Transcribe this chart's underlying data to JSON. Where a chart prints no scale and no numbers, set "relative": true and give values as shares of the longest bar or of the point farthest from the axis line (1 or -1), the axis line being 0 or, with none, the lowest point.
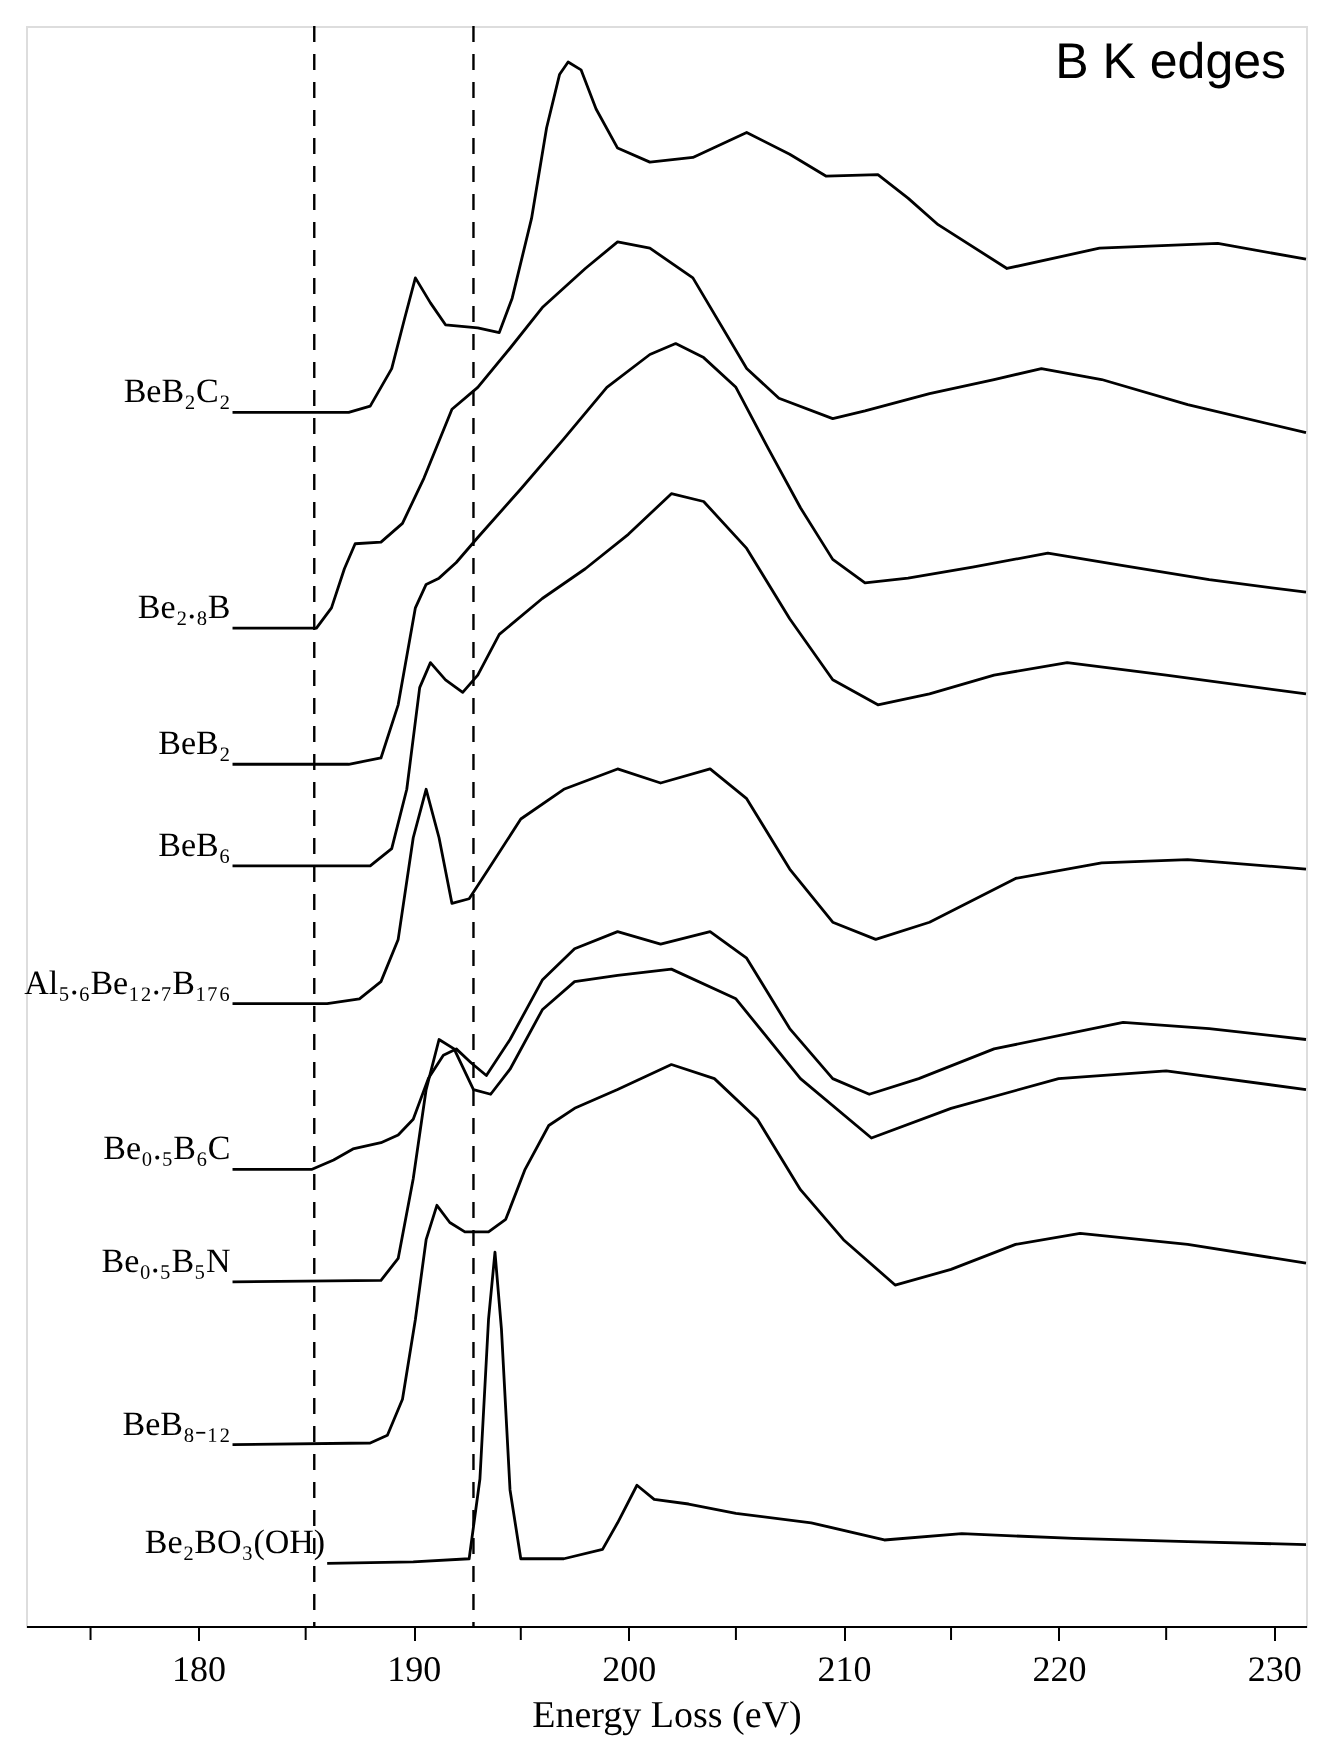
{
  "chart_data": {
    "type": "line",
    "title": "B K edges",
    "xlabel": "Energy Loss (eV)",
    "relative": true,
    "xlim": [
      172,
      231.5
    ],
    "xticks": [
      {
        "value": 175,
        "label": null
      },
      180,
      {
        "value": 185,
        "label": null
      },
      190,
      {
        "value": 195,
        "label": null
      },
      200,
      {
        "value": 205,
        "label": null
      },
      210,
      {
        "value": 215,
        "label": null
      },
      220,
      {
        "value": 225,
        "label": null
      },
      230
    ],
    "grid": false,
    "legend": false,
    "marker": "none",
    "line_style": "solid",
    "tick_labels": "x",
    "ref_lines": [
      {
        "axis": "x",
        "value": 185.4,
        "label": null,
        "color": "#000000",
        "line_style": "dashed"
      },
      {
        "axis": "x",
        "value": 192.8,
        "label": null,
        "color": "#000000",
        "line_style": "dashed"
      }
    ],
    "series": [
      {
        "name": "BeB₂C₂",
        "color": "#000000",
        "x": [
          181.6,
          187,
          188,
          189,
          189.6,
          190.1,
          190.8,
          191.5,
          193,
          194,
          194.6,
          195.5,
          196.2,
          196.8,
          197.2,
          197.8,
          198.5,
          199.5,
          201,
          203,
          205.5,
          207.5,
          209.2,
          211.6,
          213,
          214.4,
          217.6,
          221.9,
          227.4,
          231.5
        ],
        "values": [
          0.776,
          0.776,
          0.78,
          0.804,
          0.836,
          0.862,
          0.846,
          0.832,
          0.83,
          0.827,
          0.849,
          0.9,
          0.958,
          0.992,
          1.0,
          0.995,
          0.97,
          0.945,
          0.936,
          0.939,
          0.955,
          0.941,
          0.927,
          0.928,
          0.913,
          0.896,
          0.868,
          0.881,
          0.884,
          0.874
        ]
      },
      {
        "name": "Be₂.₈B",
        "color": "#000000",
        "x": [
          181.6,
          185.5,
          186.2,
          186.8,
          187.3,
          188.5,
          189.5,
          190.5,
          191.8,
          193,
          194.5,
          196,
          198,
          199.5,
          201,
          203,
          205.5,
          207,
          209.5,
          211,
          214,
          217,
          219.2,
          222,
          226,
          231.5
        ],
        "values": [
          0.638,
          0.638,
          0.651,
          0.676,
          0.692,
          0.693,
          0.705,
          0.734,
          0.778,
          0.792,
          0.817,
          0.843,
          0.868,
          0.885,
          0.881,
          0.862,
          0.804,
          0.785,
          0.772,
          0.777,
          0.788,
          0.797,
          0.804,
          0.797,
          0.781,
          0.763
        ]
      },
      {
        "name": "BeB₂",
        "color": "#000000",
        "x": [
          181.6,
          187,
          188.5,
          189.3,
          190.1,
          190.6,
          191.2,
          192,
          193,
          195,
          197,
          199,
          201,
          202.2,
          203.5,
          205,
          206.5,
          208,
          209.5,
          211,
          213,
          216,
          219.5,
          223,
          227,
          231.5
        ],
        "values": [
          0.551,
          0.551,
          0.555,
          0.589,
          0.651,
          0.666,
          0.67,
          0.68,
          0.696,
          0.727,
          0.759,
          0.792,
          0.813,
          0.82,
          0.811,
          0.792,
          0.753,
          0.715,
          0.682,
          0.667,
          0.67,
          0.677,
          0.686,
          0.678,
          0.669,
          0.661
        ]
      },
      {
        "name": "BeB₆",
        "color": "#000000",
        "x": [
          181.6,
          188,
          189,
          189.7,
          190.3,
          190.8,
          191.5,
          192.3,
          193,
          194,
          196,
          198,
          200,
          202,
          203.5,
          205.5,
          207.5,
          209.5,
          211.6,
          214,
          217,
          220.4,
          225,
          231.5
        ],
        "values": [
          0.486,
          0.486,
          0.497,
          0.535,
          0.6,
          0.616,
          0.605,
          0.597,
          0.608,
          0.634,
          0.657,
          0.676,
          0.698,
          0.724,
          0.719,
          0.689,
          0.644,
          0.605,
          0.589,
          0.596,
          0.608,
          0.616,
          0.608,
          0.596
        ]
      },
      {
        "name": "Al₅.₆Be₁₂.₇B₁₇₆",
        "color": "#000000",
        "x": [
          181.6,
          186,
          187.5,
          188.5,
          189.3,
          190,
          190.6,
          191.2,
          191.8,
          192.6,
          193.5,
          195,
          197,
          199.5,
          201.5,
          203.8,
          205.5,
          207.5,
          209.5,
          211.5,
          214,
          218,
          222,
          226,
          231.5
        ],
        "values": [
          0.398,
          0.398,
          0.401,
          0.412,
          0.439,
          0.504,
          0.535,
          0.504,
          0.462,
          0.465,
          0.484,
          0.516,
          0.535,
          0.548,
          0.539,
          0.548,
          0.529,
          0.484,
          0.45,
          0.439,
          0.45,
          0.478,
          0.488,
          0.49,
          0.484
        ]
      },
      {
        "name": "Be₀.₅B₆C",
        "color": "#000000",
        "x": [
          181.6,
          185.3,
          186.3,
          187.2,
          188.5,
          189.3,
          190,
          190.7,
          191.4,
          192,
          192.7,
          193.4,
          194.5,
          196,
          197.5,
          199.5,
          201.5,
          203.8,
          205.5,
          207.5,
          209.5,
          211.2,
          213.5,
          217,
          223,
          227,
          231.5
        ],
        "values": [
          0.292,
          0.292,
          0.298,
          0.305,
          0.309,
          0.314,
          0.324,
          0.35,
          0.365,
          0.369,
          0.36,
          0.352,
          0.375,
          0.413,
          0.433,
          0.444,
          0.436,
          0.444,
          0.427,
          0.382,
          0.35,
          0.34,
          0.35,
          0.369,
          0.386,
          0.382,
          0.375
        ]
      },
      {
        "name": "Be₀.₅B₅N",
        "color": "#000000",
        "x": [
          181.6,
          188.5,
          189.3,
          190,
          190.6,
          191.2,
          191.9,
          192.8,
          193.6,
          194.5,
          196,
          197.5,
          199.5,
          202,
          205,
          208,
          211.3,
          215,
          220,
          225,
          231.5
        ],
        "values": [
          0.22,
          0.221,
          0.235,
          0.286,
          0.343,
          0.375,
          0.369,
          0.343,
          0.34,
          0.356,
          0.394,
          0.412,
          0.416,
          0.42,
          0.401,
          0.35,
          0.312,
          0.331,
          0.35,
          0.355,
          0.343
        ]
      },
      {
        "name": "BeB₈₋₁₂",
        "color": "#000000",
        "x": [
          181.6,
          188,
          188.8,
          189.5,
          190.1,
          190.6,
          191.1,
          191.7,
          192.4,
          193.5,
          194.3,
          195.2,
          196.3,
          197.5,
          199.5,
          202,
          204,
          206,
          208,
          210,
          212.4,
          215,
          218,
          221,
          226,
          231.5
        ],
        "values": [
          0.116,
          0.117,
          0.122,
          0.145,
          0.196,
          0.247,
          0.269,
          0.258,
          0.252,
          0.252,
          0.26,
          0.292,
          0.32,
          0.331,
          0.343,
          0.359,
          0.35,
          0.324,
          0.279,
          0.247,
          0.218,
          0.228,
          0.244,
          0.251,
          0.244,
          0.232
        ]
      },
      {
        "name": "Be₂BO₃(OH)",
        "color": "#000000",
        "x": [
          186,
          190,
          192.6,
          193.1,
          193.5,
          193.8,
          194.1,
          194.5,
          195,
          197,
          198.8,
          199.5,
          200.4,
          201.2,
          202.8,
          205,
          208.5,
          211.9,
          215.5,
          220.7,
          226,
          231.5
        ],
        "values": [
          0.04,
          0.041,
          0.043,
          0.094,
          0.196,
          0.239,
          0.19,
          0.087,
          0.043,
          0.043,
          0.049,
          0.066,
          0.09,
          0.081,
          0.078,
          0.072,
          0.066,
          0.055,
          0.059,
          0.056,
          0.054,
          0.052
        ]
      }
    ]
  }
}
